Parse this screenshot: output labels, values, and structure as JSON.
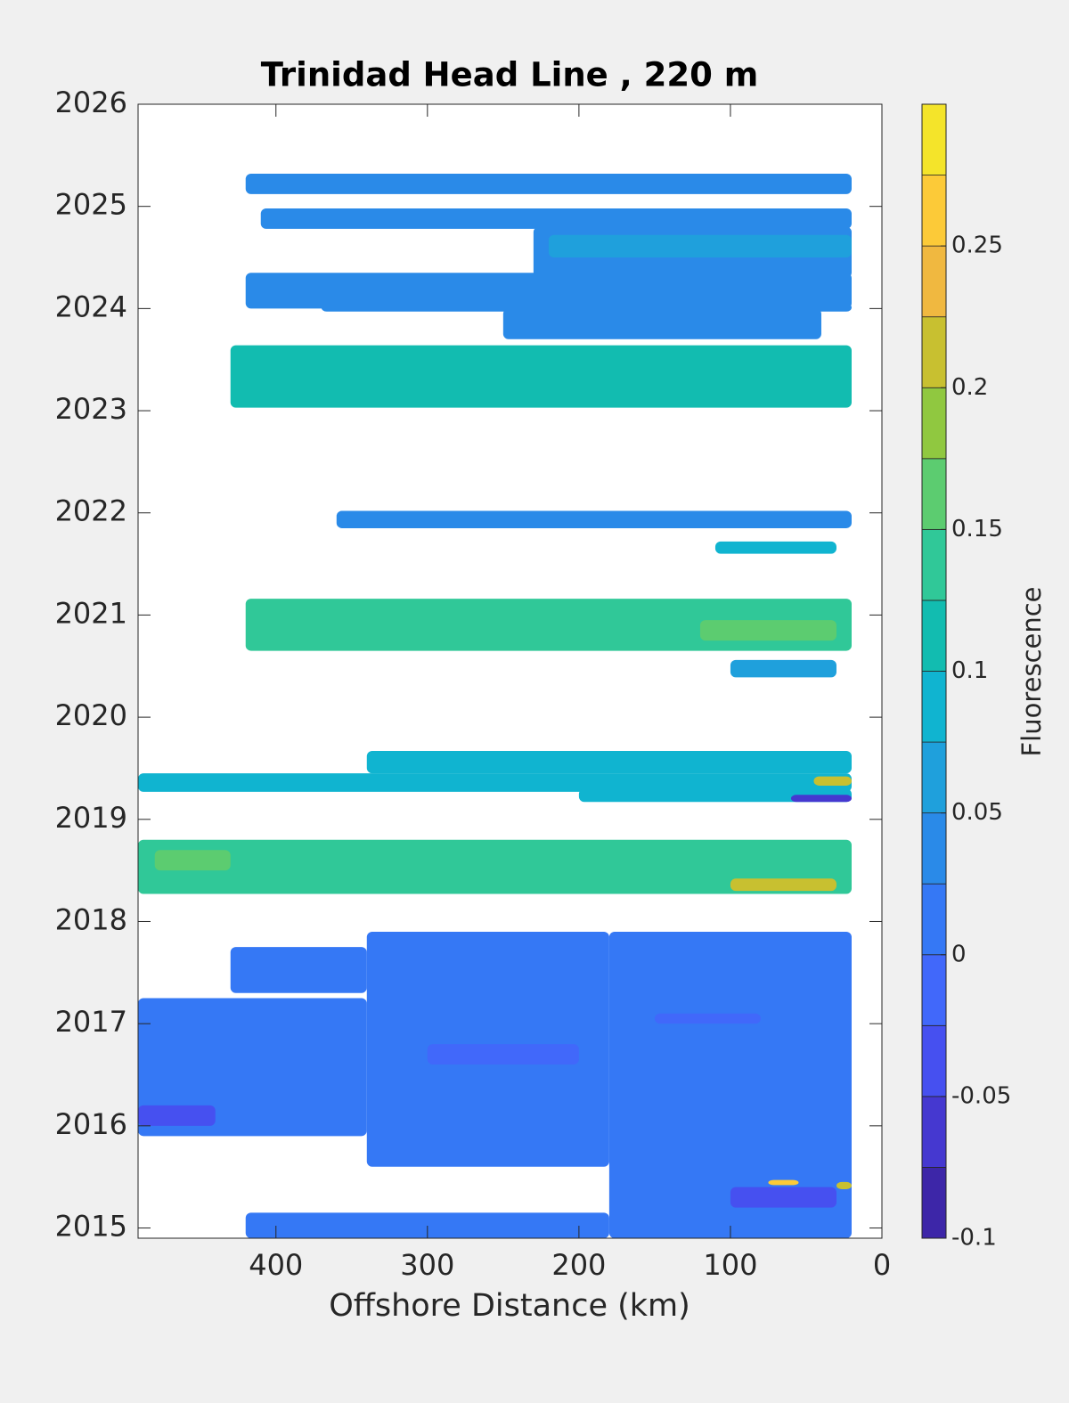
{
  "chart_data": {
    "type": "contour",
    "title": "Trinidad Head Line , 220 m",
    "xlabel": "Offshore Distance (km)",
    "colorbar_label": "Fluorescence",
    "xlim": [
      491,
      0
    ],
    "xticks": [
      400,
      300,
      200,
      100,
      0
    ],
    "ylim": [
      2014.9,
      2026
    ],
    "yticks": [
      2015,
      2016,
      2017,
      2018,
      2019,
      2020,
      2021,
      2022,
      2023,
      2024,
      2025,
      2026
    ],
    "clim": [
      -0.1,
      0.3
    ],
    "cticks": [
      -0.1,
      -0.05,
      0,
      0.05,
      0.1,
      0.15,
      0.2,
      0.25
    ],
    "colormap": [
      "#3d26a8",
      "#4538d0",
      "#4650f0",
      "#4168fa",
      "#3578f5",
      "#2a8ae8",
      "#1fa0dc",
      "#10b4d0",
      "#12bcb0",
      "#30c898",
      "#5ccc70",
      "#90c840",
      "#c8c030",
      "#f0b840",
      "#fcca38",
      "#f4e42a"
    ],
    "patches": [
      {
        "x": [
          420,
          20
        ],
        "y": [
          2025.12,
          2025.32
        ],
        "value": 0.04
      },
      {
        "x": [
          410,
          20
        ],
        "y": [
          2024.78,
          2024.98
        ],
        "value": 0.04
      },
      {
        "x": [
          230,
          20
        ],
        "y": [
          2024.3,
          2024.8
        ],
        "value": 0.04
      },
      {
        "x": [
          220,
          20
        ],
        "y": [
          2024.5,
          2024.72
        ],
        "value": 0.06
      },
      {
        "x": [
          420,
          20
        ],
        "y": [
          2024.0,
          2024.35
        ],
        "value": 0.04
      },
      {
        "x": [
          370,
          20
        ],
        "y": [
          2023.97,
          2024.05
        ],
        "value": 0.04
      },
      {
        "x": [
          250,
          40
        ],
        "y": [
          2023.7,
          2024.0
        ],
        "value": 0.04
      },
      {
        "x": [
          430,
          20
        ],
        "y": [
          2023.03,
          2023.64
        ],
        "value": 0.11
      },
      {
        "x": [
          360,
          20
        ],
        "y": [
          2021.85,
          2022.02
        ],
        "value": 0.04
      },
      {
        "x": [
          110,
          30
        ],
        "y": [
          2021.6,
          2021.72
        ],
        "value": 0.09
      },
      {
        "x": [
          420,
          20
        ],
        "y": [
          2020.65,
          2021.16
        ],
        "value": 0.14
      },
      {
        "x": [
          120,
          30
        ],
        "y": [
          2020.75,
          2020.95
        ],
        "value": 0.16
      },
      {
        "x": [
          100,
          30
        ],
        "y": [
          2020.39,
          2020.56
        ],
        "value": 0.06
      },
      {
        "x": [
          340,
          20
        ],
        "y": [
          2019.45,
          2019.67
        ],
        "value": 0.09
      },
      {
        "x": [
          491,
          20
        ],
        "y": [
          2019.27,
          2019.45
        ],
        "value": 0.09
      },
      {
        "x": [
          200,
          20
        ],
        "y": [
          2019.17,
          2019.3
        ],
        "value": 0.08
      },
      {
        "x": [
          60,
          20
        ],
        "y": [
          2019.17,
          2019.24
        ],
        "value": -0.06
      },
      {
        "x": [
          45,
          20
        ],
        "y": [
          2019.33,
          2019.42
        ],
        "value": 0.2
      },
      {
        "x": [
          491,
          20
        ],
        "y": [
          2018.27,
          2018.8
        ],
        "value": 0.13
      },
      {
        "x": [
          480,
          430
        ],
        "y": [
          2018.5,
          2018.7
        ],
        "value": 0.16
      },
      {
        "x": [
          100,
          30
        ],
        "y": [
          2018.3,
          2018.42
        ],
        "value": 0.2
      },
      {
        "x": [
          180,
          20
        ],
        "y": [
          2014.9,
          2017.9
        ],
        "value": 0.01
      },
      {
        "x": [
          340,
          180
        ],
        "y": [
          2015.6,
          2017.9
        ],
        "value": 0.01
      },
      {
        "x": [
          420,
          180
        ],
        "y": [
          2014.9,
          2015.15
        ],
        "value": 0.01
      },
      {
        "x": [
          491,
          340
        ],
        "y": [
          2015.9,
          2017.25
        ],
        "value": 0.01
      },
      {
        "x": [
          430,
          340
        ],
        "y": [
          2017.3,
          2017.75
        ],
        "value": 0.01
      },
      {
        "x": [
          491,
          440
        ],
        "y": [
          2016.0,
          2016.2
        ],
        "value": -0.04
      },
      {
        "x": [
          300,
          200
        ],
        "y": [
          2016.6,
          2016.8
        ],
        "value": -0.02
      },
      {
        "x": [
          150,
          80
        ],
        "y": [
          2017.0,
          2017.1
        ],
        "value": -0.02
      },
      {
        "x": [
          100,
          30
        ],
        "y": [
          2015.2,
          2015.4
        ],
        "value": -0.03
      },
      {
        "x": [
          75,
          55
        ],
        "y": [
          2015.42,
          2015.47
        ],
        "value": 0.26
      },
      {
        "x": [
          30,
          20
        ],
        "y": [
          2015.38,
          2015.45
        ],
        "value": 0.2
      }
    ]
  }
}
